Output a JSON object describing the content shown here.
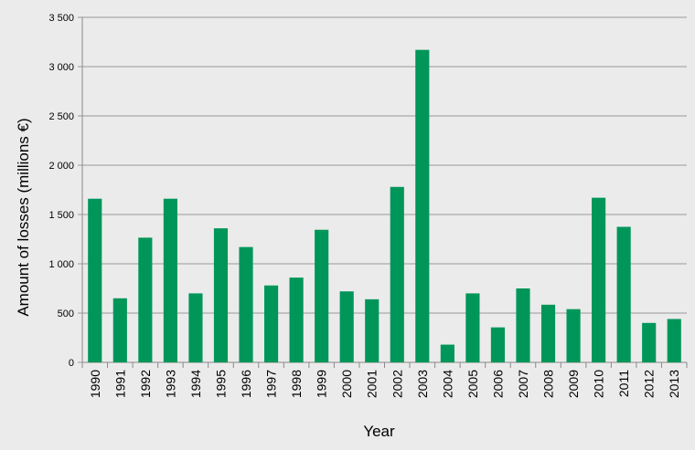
{
  "chart_data": {
    "type": "bar",
    "title": "",
    "xlabel": "Year",
    "ylabel": "Amount  of  losses (millions €)",
    "ylim": [
      0,
      3500
    ],
    "yticks": [
      0,
      500,
      1000,
      1500,
      2000,
      2500,
      3000,
      3500
    ],
    "ytick_labels": [
      "0",
      "500",
      "1 000",
      "1 500",
      "2 000",
      "2 500",
      "3 000",
      "3 500"
    ],
    "grid": true,
    "legend": "none",
    "bar_color": "#00965a",
    "categories": [
      "1990",
      "1991",
      "1992",
      "1993",
      "1994",
      "1995",
      "1996",
      "1997",
      "1998",
      "1999",
      "2000",
      "2001",
      "2002",
      "2003",
      "2004",
      "2005",
      "2006",
      "2007",
      "2008",
      "2009",
      "2010",
      "2011",
      "2012",
      "2013"
    ],
    "values": [
      1660,
      650,
      1265,
      1660,
      700,
      1360,
      1170,
      780,
      860,
      1345,
      720,
      640,
      1780,
      3170,
      180,
      700,
      355,
      750,
      585,
      540,
      1670,
      1375,
      400,
      440
    ]
  }
}
